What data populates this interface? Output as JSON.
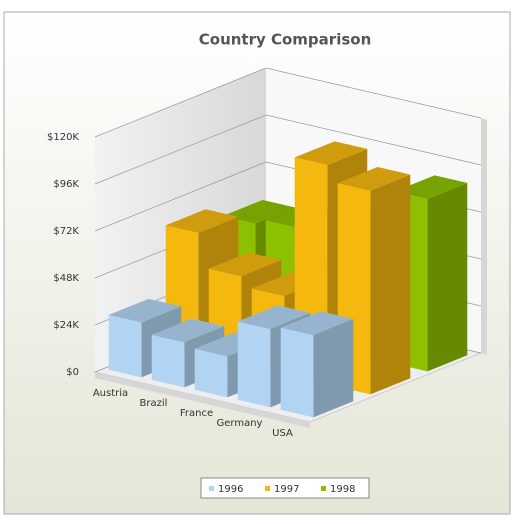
{
  "chart_data": {
    "type": "bar3d",
    "title": "Country Comparison",
    "categories": [
      "Austria",
      "Brazil",
      "France",
      "Germany",
      "USA"
    ],
    "series": [
      {
        "name": "1996",
        "color": "#b0d4f2",
        "values": [
          28000,
          23000,
          21000,
          40000,
          42000
        ]
      },
      {
        "name": "1997",
        "color": "#f5b80f",
        "values": [
          62000,
          45000,
          40000,
          112000,
          104000
        ]
      },
      {
        "name": "1998",
        "color": "#8cc000",
        "values": [
          55000,
          58000,
          42000,
          70000,
          88000
        ]
      }
    ],
    "ylim": [
      0,
      120000
    ],
    "yticks": [
      {
        "value": 0,
        "label": "$0"
      },
      {
        "value": 24000,
        "label": "$24K"
      },
      {
        "value": 48000,
        "label": "$48K"
      },
      {
        "value": 72000,
        "label": "$72K"
      },
      {
        "value": 96000,
        "label": "$96K"
      },
      {
        "value": 120000,
        "label": "$120K"
      }
    ],
    "grid": true
  }
}
